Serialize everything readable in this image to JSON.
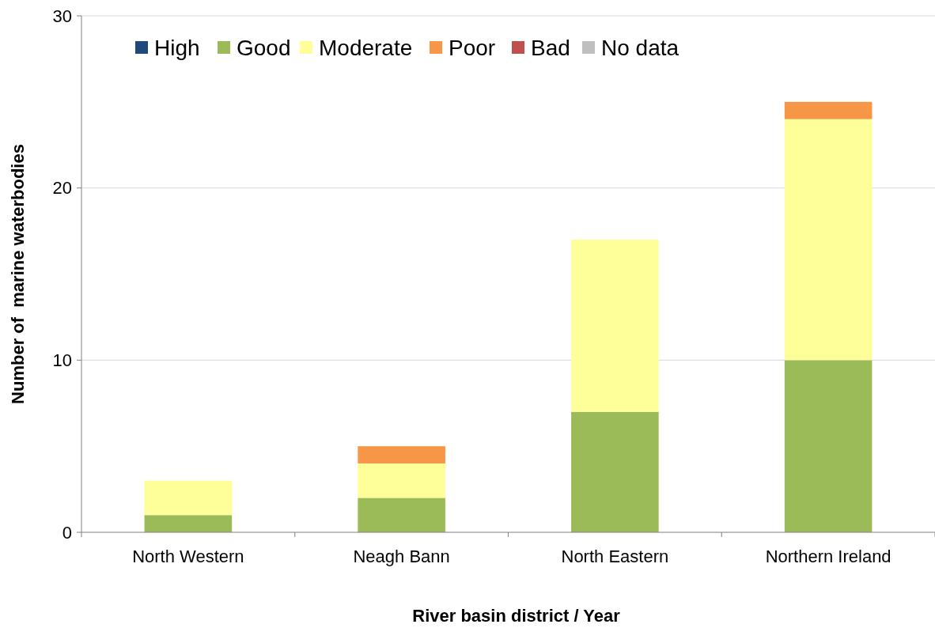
{
  "chart_data": {
    "type": "bar",
    "stacked": true,
    "xlabel": "River basin district / Year",
    "ylabel": "Number of  marine waterbodies",
    "categories": [
      "North Western",
      "Neagh Bann",
      "North Eastern",
      "Northern Ireland"
    ],
    "series": [
      {
        "name": "High",
        "color": "#1f497d",
        "values": [
          0,
          0,
          0,
          0
        ]
      },
      {
        "name": "Good",
        "color": "#9bbb59",
        "values": [
          1,
          2,
          7,
          10
        ]
      },
      {
        "name": "Moderate",
        "color": "#ffff99",
        "values": [
          2,
          2,
          10,
          14
        ]
      },
      {
        "name": "Poor",
        "color": "#f79646",
        "values": [
          0,
          1,
          0,
          1
        ]
      },
      {
        "name": "Bad",
        "color": "#c0504d",
        "values": [
          0,
          0,
          0,
          0
        ]
      },
      {
        "name": "No data",
        "color": "#bfbfbf",
        "values": [
          0,
          0,
          0,
          0
        ]
      }
    ],
    "ylim": [
      0,
      30
    ],
    "yticks": [
      0,
      10,
      20,
      30
    ],
    "grid": "y",
    "legend": "top"
  }
}
